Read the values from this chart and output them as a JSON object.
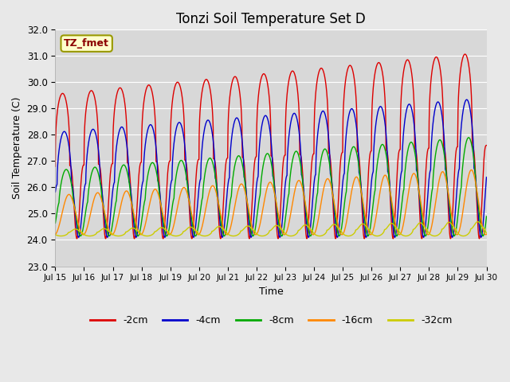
{
  "title": "Tonzi Soil Temperature Set D",
  "xlabel": "Time",
  "ylabel": "Soil Temperature (C)",
  "ylim": [
    23.0,
    32.0
  ],
  "yticks": [
    23.0,
    24.0,
    25.0,
    26.0,
    27.0,
    28.0,
    29.0,
    30.0,
    31.0,
    32.0
  ],
  "xlim_days": [
    0,
    15
  ],
  "xtick_labels": [
    "Jul 15",
    "Jul 16",
    "Jul 17",
    "Jul 18",
    "Jul 19",
    "Jul 20",
    "Jul 21",
    "Jul 22",
    "Jul 23",
    "Jul 24",
    "Jul 25",
    "Jul 26",
    "Jul 27",
    "Jul 28",
    "Jul 29",
    "Jul 30"
  ],
  "annotation": "TZ_fmet",
  "lines": [
    {
      "label": "-2cm",
      "color": "#dd0000",
      "base_min": 24.05,
      "amp_start": 5.5,
      "amp_end": 7.1,
      "phase": 0.0,
      "sharpness": 3.0,
      "trend": 0.0
    },
    {
      "label": "-4cm",
      "color": "#0000cc",
      "base_min": 24.1,
      "amp_start": 4.0,
      "amp_end": 5.3,
      "phase": 0.38,
      "sharpness": 2.0,
      "trend": 0.0
    },
    {
      "label": "-8cm",
      "color": "#00aa00",
      "base_min": 24.15,
      "amp_start": 2.5,
      "amp_end": 3.8,
      "phase": 0.8,
      "sharpness": 1.5,
      "trend": 0.0
    },
    {
      "label": "-16cm",
      "color": "#ff8800",
      "base_min": 24.2,
      "amp_start": 1.5,
      "amp_end": 2.5,
      "phase": 1.4,
      "sharpness": 1.0,
      "trend": 0.0
    },
    {
      "label": "-32cm",
      "color": "#cccc00",
      "base_min": 24.15,
      "amp_start": 0.25,
      "amp_end": 0.55,
      "phase": 2.8,
      "sharpness": 0.5,
      "trend": 0.0
    }
  ],
  "plot_bg_color": "#d8d8d8",
  "fig_bg_color": "#e8e8e8",
  "grid_color": "#ffffff",
  "n_points": 2000
}
